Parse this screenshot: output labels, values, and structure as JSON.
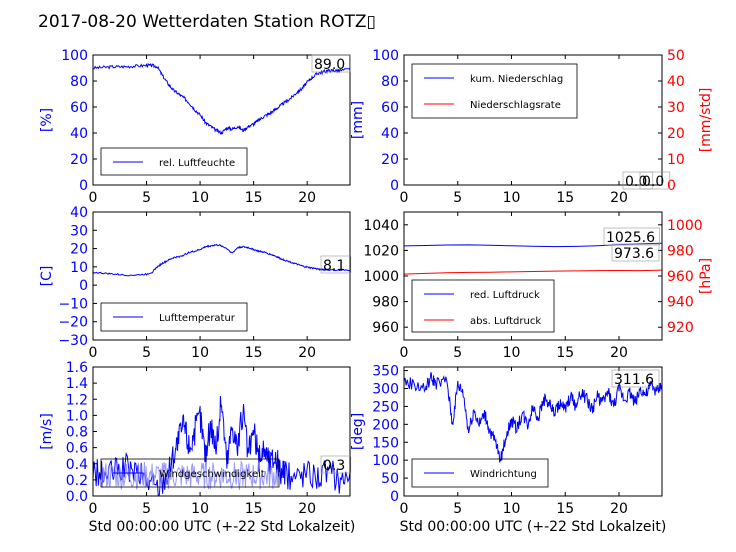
{
  "title": "2017-08-20 Wetterdaten Station ROTZ▯",
  "xlabel": "Std 00:00:00 UTC (+-22 Std Lokalzeit)",
  "chart_data": [
    {
      "type": "line",
      "ylabel": "[%]",
      "xlim": [
        0,
        24
      ],
      "ylim": [
        0,
        100
      ],
      "xticks": [
        "0",
        "5",
        "10",
        "15",
        "20"
      ],
      "yticks": [
        "0",
        "20",
        "40",
        "60",
        "80",
        "100"
      ],
      "annotation": "89.0",
      "legend_position": "lower-left",
      "series": [
        {
          "name": "rel. Luftfeuchte",
          "color": "#0000ff",
          "axis": "left",
          "x": [
            0,
            1,
            2,
            3,
            4,
            5,
            5.5,
            6,
            6.5,
            7,
            7.5,
            8,
            8.5,
            9,
            9.5,
            10,
            10.5,
            11,
            11.5,
            12,
            12.5,
            13,
            13.5,
            14,
            14.5,
            15,
            15.5,
            16,
            16.5,
            17,
            17.5,
            18,
            18.5,
            19,
            19.5,
            20,
            20.5,
            21,
            21.5,
            22,
            22.5,
            23,
            24
          ],
          "y": [
            90,
            90.5,
            91,
            91,
            91.5,
            92,
            92,
            91,
            84,
            78,
            73,
            70,
            67,
            63,
            58,
            54,
            48,
            45,
            42,
            40,
            44,
            43,
            45,
            42,
            45,
            47,
            50,
            53,
            55,
            58,
            61,
            64,
            67,
            71,
            74,
            79,
            83,
            86,
            87,
            88,
            88,
            88,
            89
          ]
        }
      ]
    },
    {
      "type": "line",
      "ylabel": "[mm]",
      "y2label": "[mm/std]",
      "xlim": [
        0,
        24
      ],
      "ylim": [
        0,
        100
      ],
      "y2lim": [
        0,
        50
      ],
      "xticks": [
        "0",
        "5",
        "10",
        "15",
        "20"
      ],
      "yticks": [
        "0",
        "20",
        "40",
        "60",
        "80",
        "100"
      ],
      "y2ticks": [
        "0",
        "10",
        "20",
        "30",
        "40",
        "50"
      ],
      "annotations": [
        "0.0",
        "0.0"
      ],
      "legend_position": "upper-left",
      "series": [
        {
          "name": "kum. Niederschlag",
          "color": "#0000ff",
          "axis": "left",
          "x": [
            0,
            24
          ],
          "y": [
            0,
            0
          ]
        },
        {
          "name": "Niederschlagsrate",
          "color": "#ff0000",
          "axis": "right",
          "x": [
            0,
            24
          ],
          "y": [
            0,
            0
          ]
        }
      ]
    },
    {
      "type": "line",
      "ylabel": "[C]",
      "xlim": [
        0,
        24
      ],
      "ylim": [
        -30,
        40
      ],
      "xticks": [
        "0",
        "5",
        "10",
        "15",
        "20"
      ],
      "yticks": [
        "−30",
        "−20",
        "−10",
        "0",
        "10",
        "20",
        "30",
        "40"
      ],
      "annotation": "8.1",
      "legend_position": "lower-left",
      "series": [
        {
          "name": "Lufttemperatur",
          "color": "#0000ff",
          "axis": "left",
          "x": [
            0,
            1,
            2,
            3,
            4,
            5,
            5.5,
            6,
            6.5,
            7,
            7.5,
            8,
            8.5,
            9,
            9.5,
            10,
            10.5,
            11,
            11.5,
            12,
            12.5,
            13,
            13.5,
            14,
            14.5,
            15,
            15.5,
            16,
            16.5,
            17,
            17.5,
            18,
            18.5,
            19,
            19.5,
            20,
            20.5,
            21,
            21.5,
            22,
            23,
            24
          ],
          "y": [
            7,
            6.5,
            6,
            5.5,
            5.5,
            6,
            7,
            10,
            12,
            13.5,
            15,
            15.5,
            16.5,
            18,
            18.5,
            19.5,
            21,
            21.5,
            22,
            21.5,
            20,
            17.5,
            20.5,
            21,
            20.5,
            19.5,
            18.5,
            18,
            17,
            16,
            14.5,
            13.5,
            12.5,
            11.5,
            10.5,
            9.8,
            9.3,
            8.8,
            8.5,
            8.3,
            8.1,
            8.1
          ]
        }
      ]
    },
    {
      "type": "line",
      "y2label": "[hPa]",
      "xlim": [
        0,
        24
      ],
      "ylim": [
        950,
        1050
      ],
      "y2lim": [
        910,
        1010
      ],
      "xticks": [
        "0",
        "5",
        "10",
        "15",
        "20"
      ],
      "yticks": [
        "960",
        "980",
        "1000",
        "1020",
        "1040"
      ],
      "y2ticks": [
        "920",
        "940",
        "960",
        "980",
        "1000"
      ],
      "annotations": [
        "1025.6",
        "973.6"
      ],
      "legend_position": "lower-left",
      "series": [
        {
          "name": "red. Luftdruck",
          "color": "#0000ff",
          "axis": "left",
          "x": [
            0,
            2,
            4,
            6,
            8,
            10,
            12,
            14,
            16,
            18,
            20,
            22,
            24
          ],
          "y": [
            1023.5,
            1023.8,
            1024.2,
            1024.3,
            1024,
            1023.6,
            1023.2,
            1023,
            1023.1,
            1023.6,
            1024.4,
            1025.2,
            1025.6
          ]
        }
      ]
    },
    {
      "type": "line",
      "ylabel": "[m/s]",
      "xlim": [
        0,
        24
      ],
      "ylim": [
        0,
        1.6
      ],
      "xticks": [
        "0",
        "5",
        "10",
        "15",
        "20"
      ],
      "yticks": [
        "0.0",
        "0.2",
        "0.4",
        "0.6",
        "0.8",
        "1.0",
        "1.2",
        "1.4",
        "1.6"
      ],
      "annotation": "0.3",
      "legend_position": "lower-left",
      "series": [
        {
          "name": "Windgeschwindigkeit",
          "color": "#0000ff",
          "axis": "left",
          "x": [
            0,
            1,
            2,
            3,
            4,
            5,
            6,
            7,
            7.5,
            8,
            8.5,
            9,
            9.5,
            10,
            10.5,
            11,
            11.5,
            12,
            12.5,
            13,
            13.5,
            14,
            14.5,
            15,
            15.5,
            16,
            16.5,
            17,
            17.5,
            18,
            19,
            20,
            21,
            22,
            23,
            24
          ],
          "y": [
            0.3,
            0.25,
            0.3,
            0.35,
            0.3,
            0.2,
            0.1,
            0.3,
            0.5,
            0.7,
            0.9,
            0.6,
            0.8,
            1.0,
            0.5,
            0.9,
            0.6,
            1.2,
            0.4,
            0.9,
            0.6,
            1.05,
            0.5,
            0.8,
            0.45,
            0.6,
            0.4,
            0.5,
            0.3,
            0.25,
            0.25,
            0.3,
            0.25,
            0.3,
            0.2,
            0.3
          ]
        }
      ]
    },
    {
      "type": "line",
      "ylabel": "[deg]",
      "xlim": [
        0,
        24
      ],
      "ylim": [
        0,
        360
      ],
      "xticks": [
        "0",
        "5",
        "10",
        "15",
        "20"
      ],
      "yticks": [
        "0",
        "50",
        "100",
        "150",
        "200",
        "250",
        "300",
        "350"
      ],
      "annotation": "311.6",
      "legend_position": "lower-left",
      "series": [
        {
          "name": "Windrichtung",
          "color": "#0000ff",
          "axis": "left",
          "x": [
            0,
            1,
            2,
            2.5,
            3,
            4,
            4.5,
            5,
            5.5,
            6,
            6.5,
            7,
            7.5,
            8,
            8.5,
            9,
            9.5,
            10,
            10.5,
            11,
            11.5,
            12,
            12.5,
            13,
            13.5,
            14,
            14.5,
            15,
            15.5,
            16,
            16.5,
            17,
            17.5,
            18,
            18.5,
            19,
            19.5,
            20,
            20.5,
            21,
            21.5,
            22,
            22.5,
            23,
            23.5,
            24
          ],
          "y": [
            320,
            310,
            300,
            330,
            315,
            320,
            200,
            310,
            290,
            180,
            240,
            200,
            230,
            180,
            150,
            100,
            170,
            210,
            190,
            230,
            200,
            250,
            220,
            270,
            260,
            230,
            260,
            240,
            280,
            250,
            290,
            270,
            240,
            280,
            260,
            290,
            250,
            300,
            270,
            290,
            260,
            300,
            280,
            310,
            290,
            312
          ]
        }
      ]
    }
  ]
}
